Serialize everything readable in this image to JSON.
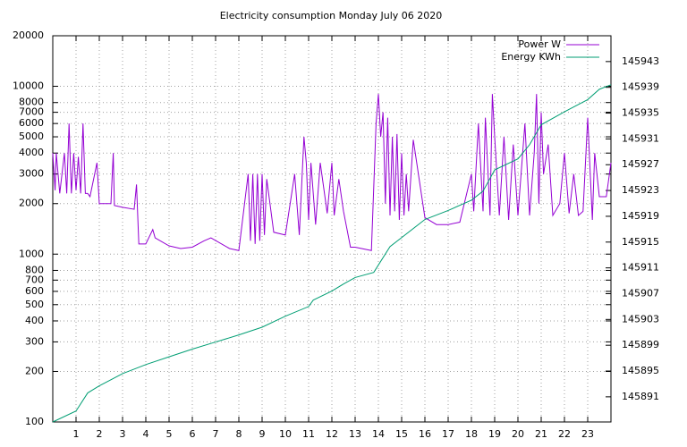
{
  "chart_data": {
    "type": "line",
    "title": "Electricity consumption Monday July 06 2020",
    "xlim": [
      0,
      24
    ],
    "xticks": [
      1,
      2,
      3,
      4,
      5,
      6,
      7,
      8,
      9,
      10,
      11,
      12,
      13,
      14,
      15,
      16,
      17,
      18,
      19,
      20,
      21,
      22,
      23
    ],
    "ylim": [
      100,
      20000
    ],
    "yscale": "log",
    "yticks": [
      100,
      200,
      300,
      400,
      500,
      600,
      700,
      800,
      1000,
      2000,
      3000,
      4000,
      5000,
      6000,
      7000,
      8000,
      10000,
      20000
    ],
    "y2lim": [
      145887.1,
      145947
    ],
    "y2ticks": [
      145891,
      145895,
      145899,
      145903,
      145907,
      145911,
      145915,
      145919,
      145923,
      145927,
      145931,
      145935,
      145939,
      145943
    ],
    "grid": true,
    "legend": "top-right",
    "series": [
      {
        "name": "Power W",
        "color": "#9400d3",
        "x": [
          0,
          0.1,
          0.15,
          0.3,
          0.5,
          0.6,
          0.7,
          0.8,
          0.9,
          1.0,
          1.1,
          1.2,
          1.3,
          1.4,
          1.5,
          1.6,
          1.9,
          2.0,
          2.5,
          2.6,
          2.65,
          3.0,
          3.5,
          3.6,
          3.7,
          4.0,
          4.3,
          4.4,
          5.0,
          5.5,
          6.0,
          6.5,
          6.8,
          7.6,
          8.0,
          8.4,
          8.5,
          8.6,
          8.7,
          8.8,
          8.9,
          9.0,
          9.1,
          9.2,
          9.5,
          10.0,
          10.4,
          10.6,
          10.8,
          10.9,
          11.0,
          11.1,
          11.3,
          11.5,
          11.8,
          12.0,
          12.1,
          12.3,
          12.5,
          12.8,
          13.0,
          13.7,
          13.8,
          13.9,
          14.0,
          14.1,
          14.2,
          14.3,
          14.4,
          14.5,
          14.6,
          14.7,
          14.8,
          14.9,
          15.0,
          15.1,
          15.2,
          15.3,
          15.5,
          16.0,
          16.5,
          17.0,
          17.5,
          18.0,
          18.1,
          18.3,
          18.5,
          18.6,
          18.8,
          18.9,
          19.0,
          19.2,
          19.4,
          19.6,
          19.8,
          20.0,
          20.3,
          20.5,
          20.7,
          20.8,
          20.9,
          21.0,
          21.1,
          21.3,
          21.5,
          21.8,
          22.0,
          22.2,
          22.4,
          22.6,
          22.8,
          23.0,
          23.2,
          23.3,
          23.5,
          23.8,
          24.0
        ],
        "values": [
          4000,
          2400,
          4000,
          2300,
          4000,
          2300,
          6000,
          2300,
          4000,
          2400,
          3800,
          2300,
          6000,
          2300,
          2300,
          2200,
          3500,
          2000,
          2000,
          4000,
          1950,
          1900,
          1850,
          2600,
          1150,
          1150,
          1400,
          1250,
          1120,
          1080,
          1100,
          1200,
          1250,
          1080,
          1050,
          3000,
          1200,
          3000,
          1150,
          3000,
          1200,
          3000,
          1300,
          2800,
          1350,
          1300,
          3000,
          1300,
          5000,
          3500,
          1600,
          3500,
          1500,
          3500,
          1750,
          3500,
          1700,
          2800,
          1800,
          1100,
          1100,
          1050,
          2500,
          6000,
          9000,
          5000,
          7000,
          2000,
          6500,
          1700,
          5000,
          1800,
          5200,
          1600,
          4000,
          1700,
          3000,
          1800,
          4800,
          1650,
          1500,
          1500,
          1550,
          3000,
          1800,
          6000,
          1800,
          6500,
          1700,
          9000,
          5000,
          1700,
          5000,
          1600,
          4500,
          1700,
          6000,
          1700,
          4000,
          9000,
          2000,
          7000,
          3000,
          4500,
          1700,
          2000,
          4000,
          1750,
          3000,
          1700,
          1800,
          6500,
          1600,
          4000,
          2200,
          2200,
          3500
        ]
      },
      {
        "name": "Energy KWh",
        "color": "#009e73",
        "axis": "y2",
        "x": [
          0,
          1,
          1.5,
          2,
          3,
          4,
          5,
          6,
          7,
          8,
          9,
          10,
          11,
          11.2,
          12,
          12.5,
          13,
          13.8,
          14.5,
          15,
          16,
          17,
          18,
          18.5,
          19,
          20,
          20.5,
          21,
          22,
          23,
          23.5,
          24
        ],
        "values": [
          145887.1,
          145888.8,
          145891.6,
          145892.7,
          145894.6,
          145896.0,
          145897.2,
          145898.4,
          145899.5,
          145900.6,
          145901.8,
          145903.5,
          145905.0,
          145906.0,
          145907.4,
          145908.5,
          145909.5,
          145910.3,
          145914.3,
          145915.7,
          145918.5,
          145919.9,
          145921.5,
          145922.9,
          145926.2,
          145927.9,
          145930.1,
          145933.2,
          145935.2,
          145937.1,
          145938.7,
          145939.4
        ]
      }
    ]
  }
}
